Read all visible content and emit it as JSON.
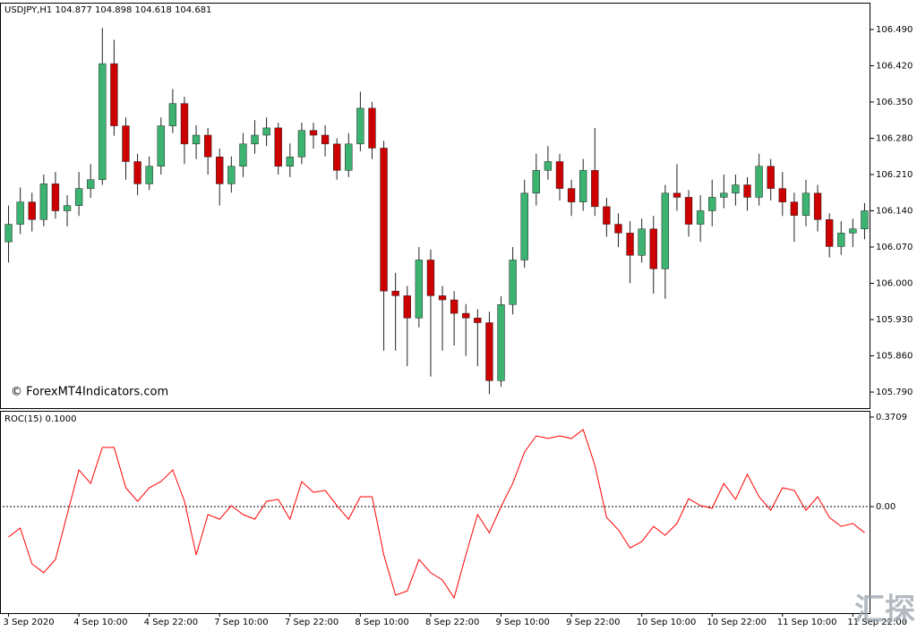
{
  "chart_data": [
    {
      "type": "candlestick",
      "title": "USDJPY,H1  104.877 104.898 104.618 104.681",
      "annotation": "© ForexMT4Indicators.com",
      "watermark": "汇探网",
      "up_color": "#3cb371",
      "down_color": "#cc0000",
      "wick_color": "#222222",
      "ylim": [
        105.759,
        106.54
      ],
      "yticks": [
        {
          "value": 106.49,
          "label": "106.490"
        },
        {
          "value": 106.42,
          "label": "106.420"
        },
        {
          "value": 106.35,
          "label": "106.350"
        },
        {
          "value": 106.28,
          "label": "106.280"
        },
        {
          "value": 106.21,
          "label": "106.210"
        },
        {
          "value": 106.14,
          "label": "106.140"
        },
        {
          "value": 106.07,
          "label": "106.070"
        },
        {
          "value": 106.0,
          "label": "106.000"
        },
        {
          "value": 105.93,
          "label": "105.930"
        },
        {
          "value": 105.86,
          "label": "105.860"
        },
        {
          "value": 105.79,
          "label": "105.790"
        }
      ],
      "categories": [
        "3 Sep 2020",
        null,
        null,
        null,
        null,
        null,
        "4 Sep 10:00",
        null,
        null,
        null,
        null,
        null,
        "4 Sep 22:00",
        null,
        null,
        null,
        null,
        null,
        "7 Sep 10:00",
        null,
        null,
        null,
        null,
        null,
        "7 Sep 22:00",
        null,
        null,
        null,
        null,
        null,
        "8 Sep 10:00",
        null,
        null,
        null,
        null,
        null,
        "8 Sep 22:00",
        null,
        null,
        null,
        null,
        null,
        "9 Sep 10:00",
        null,
        null,
        null,
        null,
        null,
        "9 Sep 22:00",
        null,
        null,
        null,
        null,
        null,
        "10 Sep 10:00",
        null,
        null,
        null,
        null,
        null,
        "10 Sep 22:00",
        null,
        null,
        null,
        null,
        null,
        "11 Sep 10:00",
        null,
        null,
        null,
        null,
        null,
        "11 Sep 22:00",
        null
      ],
      "open": [
        106.08,
        106.114,
        106.157,
        106.123,
        106.192,
        106.14,
        106.15,
        106.183,
        106.2,
        106.424,
        106.304,
        106.235,
        106.192,
        106.226,
        106.304,
        106.347,
        106.269,
        106.286,
        106.244,
        106.192,
        106.226,
        106.269,
        106.286,
        106.3,
        106.226,
        106.244,
        106.295,
        106.286,
        106.269,
        106.218,
        106.269,
        106.338,
        106.261,
        105.985,
        105.976,
        105.933,
        106.045,
        105.976,
        105.968,
        105.942,
        105.933,
        105.924,
        105.812,
        105.959,
        106.045,
        106.174,
        106.218,
        106.235,
        106.183,
        106.157,
        106.218,
        106.148,
        106.114,
        106.097,
        106.054,
        106.105,
        106.028,
        106.174,
        106.166,
        106.114,
        106.14,
        106.166,
        106.174,
        106.19,
        106.166,
        106.226,
        106.183,
        106.157,
        106.131,
        106.174,
        106.123,
        106.071,
        106.097,
        106.105
      ],
      "high": [
        106.15,
        106.185,
        106.175,
        106.21,
        106.215,
        106.17,
        106.215,
        106.23,
        106.493,
        106.47,
        106.32,
        106.25,
        106.245,
        106.32,
        106.375,
        106.36,
        106.305,
        106.3,
        106.26,
        106.245,
        106.29,
        106.315,
        106.32,
        106.31,
        106.27,
        106.31,
        106.31,
        106.305,
        106.28,
        106.29,
        106.37,
        106.35,
        106.275,
        106.02,
        105.995,
        106.07,
        106.065,
        105.995,
        105.985,
        105.96,
        105.95,
        105.945,
        105.975,
        106.07,
        106.2,
        106.25,
        106.265,
        106.25,
        106.2,
        106.24,
        106.3,
        106.165,
        106.135,
        106.12,
        106.125,
        106.13,
        106.19,
        106.23,
        106.18,
        106.17,
        106.2,
        106.21,
        106.21,
        106.205,
        106.25,
        106.24,
        106.215,
        106.175,
        106.2,
        106.19,
        106.135,
        106.12,
        106.125,
        106.155
      ],
      "low": [
        106.04,
        106.095,
        106.1,
        106.11,
        106.125,
        106.11,
        106.13,
        106.165,
        106.19,
        106.285,
        106.2,
        106.17,
        106.18,
        106.21,
        106.29,
        106.23,
        106.24,
        106.21,
        106.15,
        106.175,
        106.205,
        106.25,
        106.265,
        106.21,
        106.205,
        106.23,
        106.26,
        106.245,
        106.2,
        106.205,
        106.255,
        106.24,
        105.87,
        105.87,
        105.84,
        105.915,
        105.82,
        105.87,
        105.88,
        105.86,
        105.84,
        105.786,
        105.8,
        105.94,
        106.03,
        106.15,
        106.2,
        106.16,
        106.13,
        106.14,
        106.13,
        106.09,
        106.07,
        106.0,
        106.04,
        105.98,
        105.97,
        106.14,
        106.09,
        106.08,
        106.11,
        106.145,
        106.15,
        106.14,
        106.15,
        106.16,
        106.13,
        106.08,
        106.11,
        106.1,
        106.05,
        106.055,
        106.07,
        106.085
      ],
      "close": [
        106.114,
        106.157,
        106.123,
        106.192,
        106.14,
        106.15,
        106.183,
        106.2,
        106.424,
        106.304,
        106.235,
        106.192,
        106.226,
        106.304,
        106.347,
        106.269,
        106.286,
        106.244,
        106.192,
        106.226,
        106.269,
        106.286,
        106.3,
        106.226,
        106.244,
        106.295,
        106.286,
        106.269,
        106.218,
        106.269,
        106.338,
        106.261,
        105.985,
        105.976,
        105.933,
        106.045,
        105.976,
        105.968,
        105.942,
        105.933,
        105.924,
        105.812,
        105.959,
        106.045,
        106.174,
        106.218,
        106.235,
        106.183,
        106.157,
        106.218,
        106.148,
        106.114,
        106.097,
        106.054,
        106.105,
        106.028,
        106.174,
        106.166,
        106.114,
        106.14,
        106.166,
        106.174,
        106.19,
        106.166,
        106.226,
        106.183,
        106.157,
        106.131,
        106.174,
        106.123,
        106.071,
        106.097,
        106.105,
        106.14
      ]
    },
    {
      "type": "line",
      "title": "ROC(15) 0.1000",
      "color": "#ff0000",
      "y2lim": [
        -0.441,
        0.393
      ],
      "y2ticks": [
        0.3709,
        {
          "value": 0,
          "label": "0.00"
        }
      ],
      "values": [
        -0.126,
        -0.089,
        -0.237,
        -0.274,
        -0.219,
        -0.033,
        0.152,
        0.096,
        0.245,
        0.245,
        0.078,
        0.022,
        0.078,
        0.104,
        0.152,
        0.022,
        -0.2,
        -0.033,
        -0.052,
        0.004,
        -0.033,
        -0.052,
        0.022,
        0.03,
        -0.052,
        0.104,
        0.059,
        0.067,
        0.004,
        -0.052,
        0.041,
        0.041,
        -0.2,
        -0.367,
        -0.349,
        -0.219,
        -0.274,
        -0.304,
        -0.378,
        -0.2,
        -0.033,
        -0.108,
        0,
        0.096,
        0.226,
        0.293,
        0.282,
        0.293,
        0.282,
        0.319,
        0.171,
        -0.045,
        -0.096,
        -0.171,
        -0.145,
        -0.082,
        -0.119,
        -0.07,
        0.033,
        0.004,
        -0.007,
        0.096,
        0.03,
        0.134,
        0.041,
        -0.015,
        0.078,
        0.067,
        -0.015,
        0.041,
        -0.045,
        -0.082,
        -0.07,
        -0.108
      ]
    }
  ]
}
